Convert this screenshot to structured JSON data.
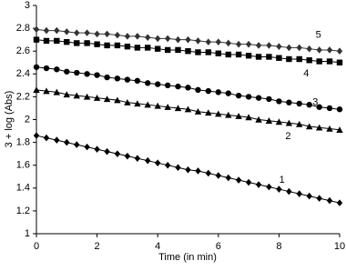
{
  "chart_data": {
    "type": "line",
    "x_label": "Time (in min)",
    "y_label": "3 + log (Abs)",
    "xlim": [
      0,
      10
    ],
    "ylim": [
      1,
      3
    ],
    "xticks": [
      0,
      2,
      4,
      6,
      8,
      10
    ],
    "yticks": [
      1,
      1.2,
      1.4,
      1.6,
      1.8,
      2,
      2.2,
      2.4,
      2.6,
      2.8,
      3
    ],
    "x": [
      0,
      0.33,
      0.67,
      1,
      1.33,
      1.67,
      2,
      2.33,
      2.67,
      3,
      3.33,
      3.67,
      4,
      4.33,
      4.67,
      5,
      5.33,
      5.67,
      6,
      6.33,
      6.67,
      7,
      7.33,
      7.67,
      8,
      8.33,
      8.67,
      9,
      9.33,
      9.67,
      10
    ],
    "series": [
      {
        "marker": "diamond",
        "color": "#000000",
        "values": [
          1.86,
          1.84,
          1.82,
          1.8,
          1.78,
          1.76,
          1.74,
          1.72,
          1.7,
          1.68,
          1.66,
          1.64,
          1.62,
          1.6,
          1.58,
          1.56,
          1.55,
          1.53,
          1.51,
          1.49,
          1.47,
          1.45,
          1.43,
          1.41,
          1.39,
          1.37,
          1.35,
          1.33,
          1.31,
          1.29,
          1.27
        ]
      },
      {
        "marker": "triangle",
        "color": "#000000",
        "values": [
          2.26,
          2.25,
          2.24,
          2.22,
          2.21,
          2.2,
          2.19,
          2.18,
          2.17,
          2.15,
          2.14,
          2.13,
          2.12,
          2.11,
          2.1,
          2.09,
          2.07,
          2.06,
          2.05,
          2.04,
          2.03,
          2.02,
          2.0,
          1.99,
          1.98,
          1.97,
          1.96,
          1.94,
          1.93,
          1.92,
          1.91
        ]
      },
      {
        "marker": "circle",
        "color": "#000000",
        "values": [
          2.46,
          2.45,
          2.44,
          2.42,
          2.41,
          2.4,
          2.39,
          2.37,
          2.36,
          2.35,
          2.34,
          2.32,
          2.31,
          2.3,
          2.29,
          2.28,
          2.26,
          2.25,
          2.24,
          2.23,
          2.21,
          2.2,
          2.19,
          2.18,
          2.16,
          2.15,
          2.14,
          2.13,
          2.11,
          2.1,
          2.09
        ]
      },
      {
        "marker": "square",
        "color": "#000000",
        "values": [
          2.7,
          2.69,
          2.69,
          2.68,
          2.67,
          2.67,
          2.66,
          2.65,
          2.65,
          2.64,
          2.63,
          2.63,
          2.62,
          2.61,
          2.61,
          2.6,
          2.59,
          2.59,
          2.58,
          2.57,
          2.57,
          2.56,
          2.55,
          2.55,
          2.54,
          2.53,
          2.53,
          2.52,
          2.51,
          2.51,
          2.5
        ]
      },
      {
        "marker": "diamond",
        "color": "#333333",
        "values": [
          2.79,
          2.78,
          2.78,
          2.77,
          2.76,
          2.76,
          2.75,
          2.75,
          2.74,
          2.73,
          2.73,
          2.72,
          2.71,
          2.71,
          2.7,
          2.7,
          2.69,
          2.68,
          2.68,
          2.67,
          2.66,
          2.66,
          2.65,
          2.65,
          2.64,
          2.63,
          2.63,
          2.62,
          2.61,
          2.61,
          2.6
        ]
      }
    ],
    "annotations": [
      {
        "text": "1",
        "x": 8.1,
        "y": 1.47
      },
      {
        "text": "2",
        "x": 8.3,
        "y": 1.85
      },
      {
        "text": "3",
        "x": 9.2,
        "y": 2.15
      },
      {
        "text": "4",
        "x": 8.9,
        "y": 2.4
      },
      {
        "text": "5",
        "x": 9.3,
        "y": 2.74
      }
    ]
  }
}
